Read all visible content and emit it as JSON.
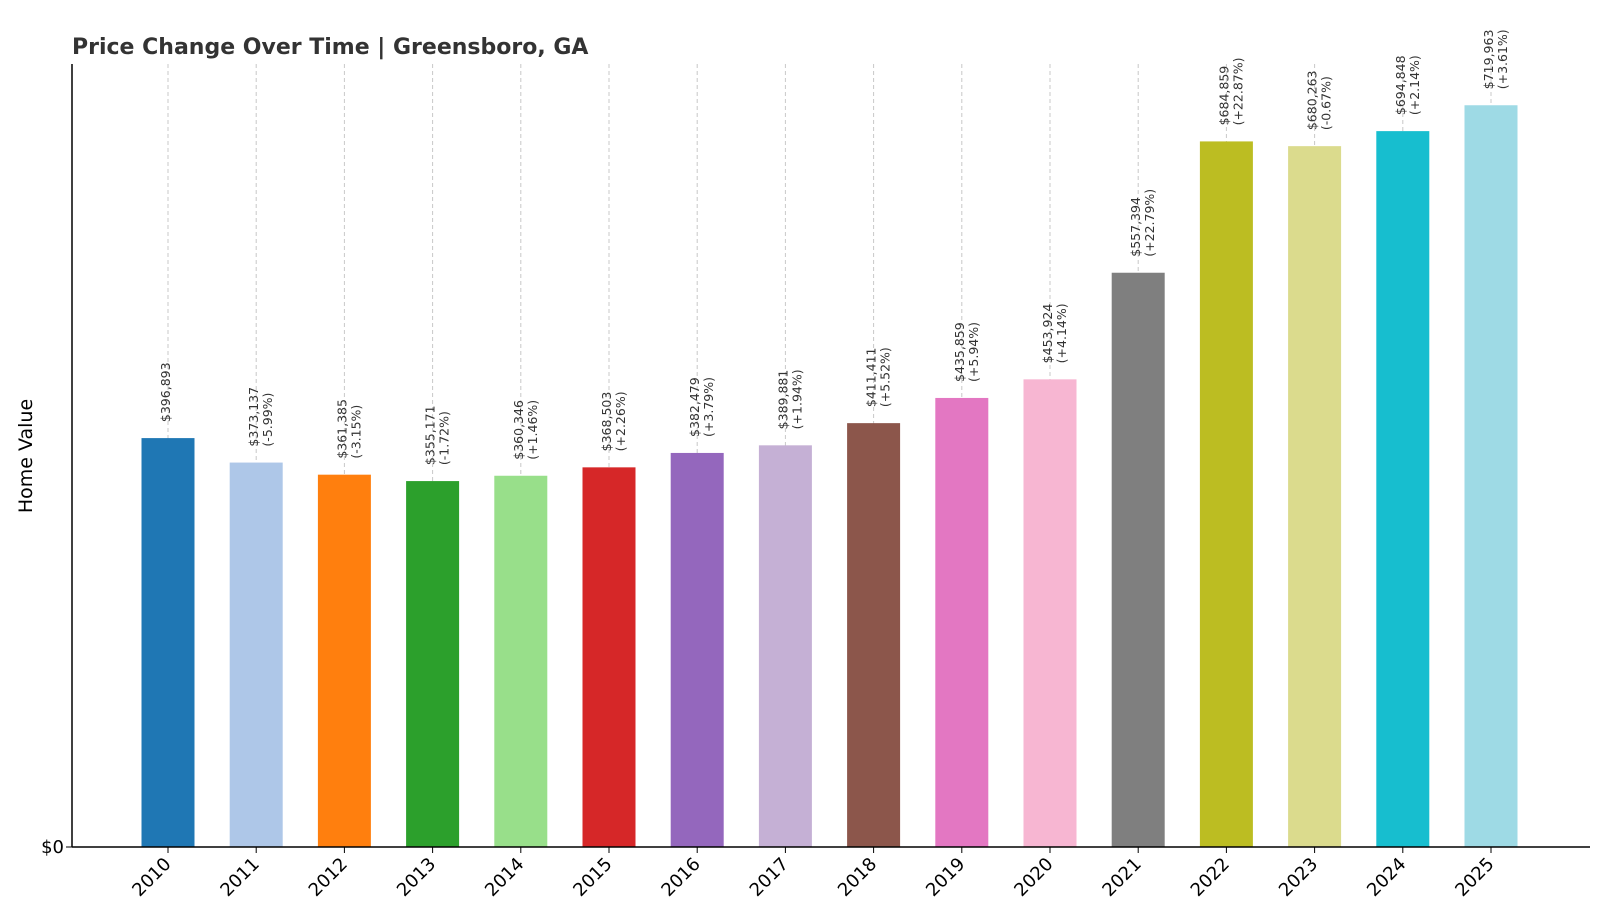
{
  "chart_data": {
    "type": "bar",
    "title": "Price Change Over Time | Greensboro, GA",
    "xlabel": "",
    "ylabel": "Home Value",
    "y_ticks": [
      "$0"
    ],
    "ylim": [
      0,
      760000
    ],
    "grid": "vertical dashed",
    "legend": "none",
    "categories": [
      "2010",
      "2011",
      "2012",
      "2013",
      "2014",
      "2015",
      "2016",
      "2017",
      "2018",
      "2019",
      "2020",
      "2021",
      "2022",
      "2023",
      "2024",
      "2025"
    ],
    "values": [
      396893,
      373137,
      361385,
      355171,
      360346,
      368503,
      382479,
      389881,
      411411,
      435859,
      453924,
      557394,
      684859,
      680263,
      694848,
      719963
    ],
    "value_labels": [
      "$396,893",
      "$373,137",
      "$361,385",
      "$355,171",
      "$360,346",
      "$368,503",
      "$382,479",
      "$389,881",
      "$411,411",
      "$435,859",
      "$453,924",
      "$557,394",
      "$684,859",
      "$680,263",
      "$694,848",
      "$719,963"
    ],
    "change_labels": [
      "",
      "(-5.99%)",
      "(-3.15%)",
      "(-1.72%)",
      "(+1.46%)",
      "(+2.26%)",
      "(+3.79%)",
      "(+1.94%)",
      "(+5.52%)",
      "(+5.94%)",
      "(+4.14%)",
      "(+22.79%)",
      "(+22.87%)",
      "(-0.67%)",
      "(+2.14%)",
      "(+3.61%)"
    ],
    "colors": [
      "#1f77b4",
      "#aec7e8",
      "#ff7f0e",
      "#2ca02c",
      "#98df8a",
      "#d62728",
      "#9467bd",
      "#c5b0d5",
      "#8c564b",
      "#e377c2",
      "#f7b6d2",
      "#7f7f7f",
      "#bcbd22",
      "#dbdb8d",
      "#17becf",
      "#9edae5"
    ]
  }
}
